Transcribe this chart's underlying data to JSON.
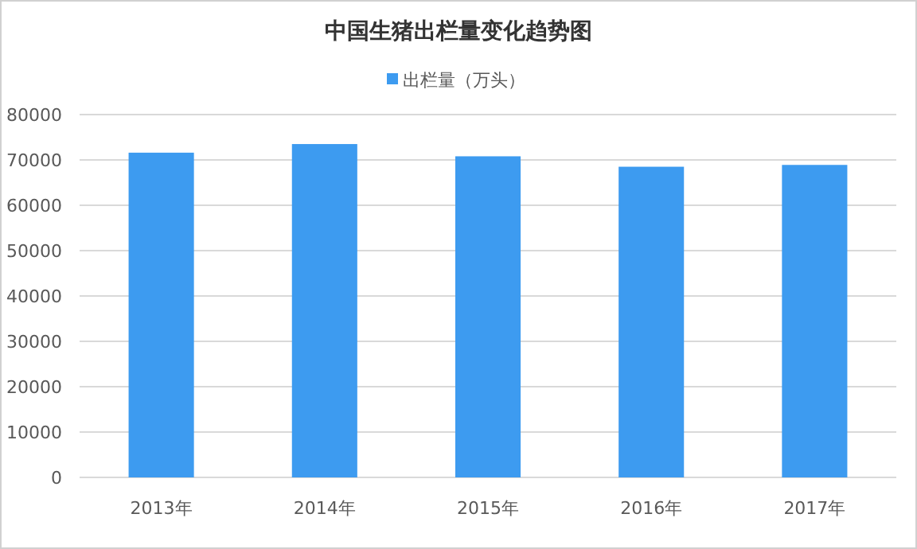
{
  "chart_data": {
    "type": "bar",
    "title": "中国生猪出栏量变化趋势图",
    "categories": [
      "2013年",
      "2014年",
      "2015年",
      "2016年",
      "2017年"
    ],
    "series": [
      {
        "name": "出栏量（万头）",
        "color": "#3d9bf0",
        "values": [
          71600,
          73500,
          70800,
          68500,
          68900
        ]
      }
    ],
    "ylim": [
      0,
      80000
    ],
    "yticks": [
      0,
      10000,
      20000,
      30000,
      40000,
      50000,
      60000,
      70000,
      80000
    ],
    "grid": "y",
    "legend": "top"
  }
}
